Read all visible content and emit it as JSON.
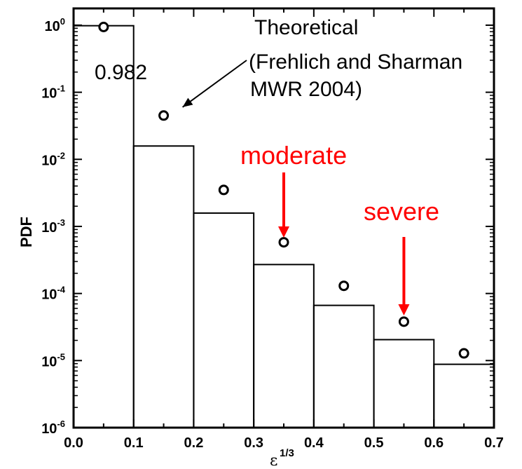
{
  "chart_data": {
    "type": "bar",
    "title": "",
    "ylabel": "PDF",
    "xlabel_base": "ε",
    "xlabel_sup": "1/3",
    "xlim": [
      0.0,
      0.7
    ],
    "ylim": [
      1e-06,
      2
    ],
    "y_scale": "log",
    "grid": false,
    "x_tick_values": [
      0.0,
      0.1,
      0.2,
      0.3,
      0.4,
      0.5,
      0.6,
      0.7
    ],
    "x_tick_labels": [
      "0.0",
      "0.1",
      "0.2",
      "0.3",
      "0.4",
      "0.5",
      "0.6",
      "0.7"
    ],
    "y_tick_values": [
      1,
      0.1,
      0.01,
      0.001,
      0.0001,
      1e-05,
      1e-06
    ],
    "y_tick_exponents": [
      "0",
      "-1",
      "-2",
      "-3",
      "-4",
      "-5",
      "-6"
    ],
    "y_tick_base": "10",
    "histogram": {
      "bin_edges": [
        0.0,
        0.1,
        0.2,
        0.3,
        0.4,
        0.5,
        0.6,
        0.7
      ],
      "values": [
        0.982,
        0.0158,
        0.00158,
        0.00027,
        6.65e-05,
        2.05e-05,
        8.8e-06
      ]
    },
    "theoretical_points": {
      "x": [
        0.05,
        0.15,
        0.25,
        0.35,
        0.45,
        0.55,
        0.65
      ],
      "y": [
        0.94,
        0.045,
        0.0035,
        0.00058,
        0.00013,
        3.8e-05,
        1.28e-05
      ]
    },
    "annotations": {
      "first_bin_value": "0.982",
      "theoretical_lines": [
        "Theoretical",
        "(Frehlich and Sharman",
        "MWR 2004)"
      ],
      "moderate": "moderate",
      "severe": "severe",
      "red_color": "#ff0000",
      "moderate_x": 0.35,
      "severe_x": 0.55
    }
  }
}
